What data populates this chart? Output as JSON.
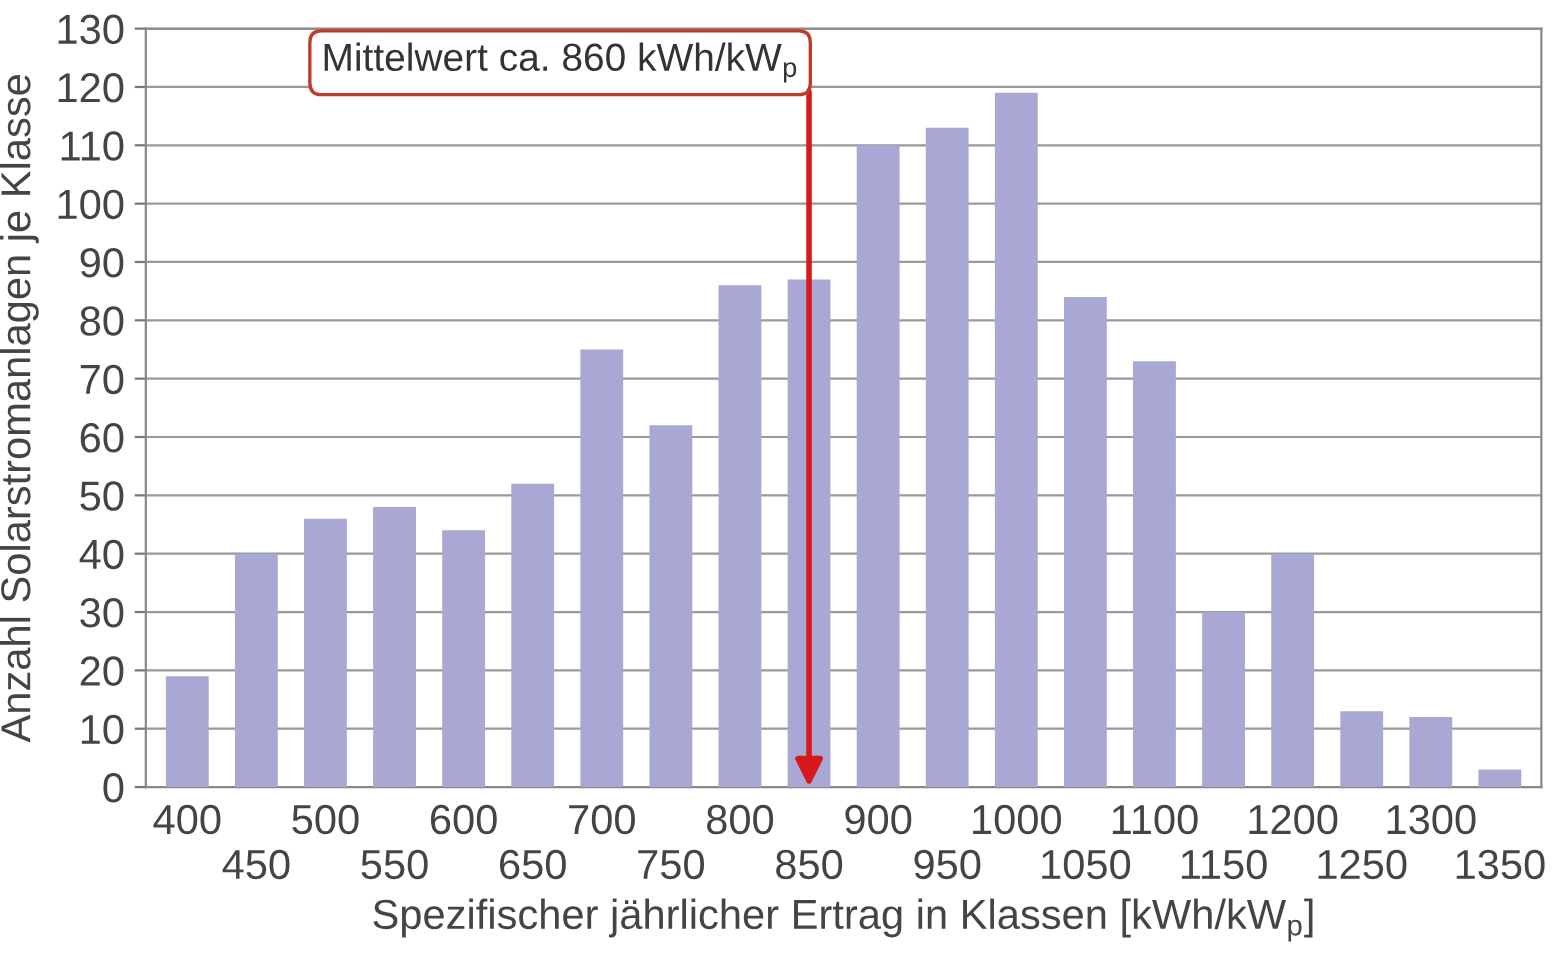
{
  "chart_data": {
    "type": "bar",
    "xlabel": "Spezifischer jährlicher Ertrag in Klassen [kWh/kW$_{p}$]",
    "ylabel": "Anzahl Solarstromanlagen je Klasse",
    "categories": [
      "400",
      "450",
      "500",
      "550",
      "600",
      "650",
      "700",
      "750",
      "800",
      "850",
      "900",
      "950",
      "1000",
      "1050",
      "1100",
      "1150",
      "1200",
      "1250",
      "1300",
      "1350"
    ],
    "values": [
      19,
      40,
      46,
      48,
      44,
      52,
      75,
      62,
      86,
      87,
      110,
      113,
      119,
      84,
      73,
      30,
      40,
      13,
      12,
      3
    ],
    "color": "#a9a7d4",
    "ylim": [
      0,
      130
    ],
    "yticks": [
      0,
      10,
      20,
      30,
      40,
      50,
      60,
      70,
      80,
      90,
      100,
      110,
      120,
      130
    ],
    "grid": "y",
    "annotations": [
      {
        "text": "Mittelwert ca. 860 kWh/kW$_{p}$",
        "x": "850",
        "y": 0
      }
    ]
  }
}
